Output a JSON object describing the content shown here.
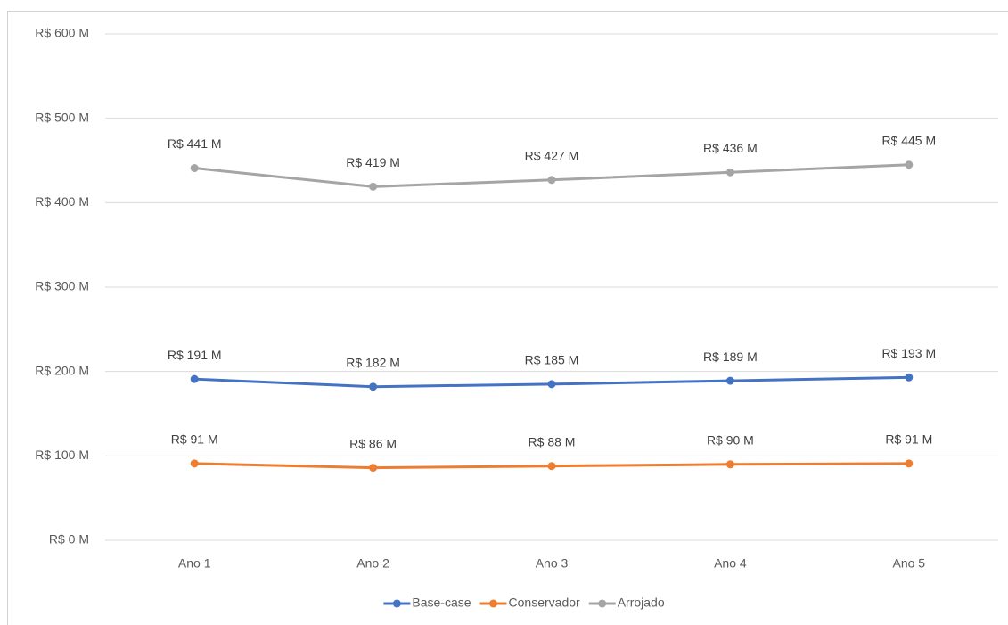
{
  "chart_data": {
    "type": "line",
    "categories": [
      "Ano 1",
      "Ano 2",
      "Ano 3",
      "Ano 4",
      "Ano 5"
    ],
    "series": [
      {
        "name": "Base-case",
        "color": "#4472c4",
        "values": [
          191,
          182,
          185,
          189,
          193
        ],
        "value_labels": [
          "R$ 191 M",
          "R$ 182 M",
          "R$ 185 M",
          "R$ 189 M",
          "R$ 193 M"
        ]
      },
      {
        "name": "Conservador",
        "color": "#ed7d31",
        "values": [
          91,
          86,
          88,
          90,
          91
        ],
        "value_labels": [
          "R$ 91 M",
          "R$ 86 M",
          "R$ 88 M",
          "R$ 90 M",
          "R$ 91 M"
        ]
      },
      {
        "name": "Arrojado",
        "color": "#a5a5a5",
        "values": [
          441,
          419,
          427,
          436,
          445
        ],
        "value_labels": [
          "R$ 441 M",
          "R$ 419 M",
          "R$ 427 M",
          "R$ 436 M",
          "R$ 445 M"
        ]
      }
    ],
    "ylim": [
      0,
      600
    ],
    "yticks": [
      {
        "value": 0,
        "label": "R$ 0 M"
      },
      {
        "value": 100,
        "label": "R$ 100 M"
      },
      {
        "value": 200,
        "label": "R$ 200 M"
      },
      {
        "value": 300,
        "label": "R$ 300 M"
      },
      {
        "value": 400,
        "label": "R$ 400 M"
      },
      {
        "value": 500,
        "label": "R$ 500 M"
      },
      {
        "value": 600,
        "label": "R$ 600 M"
      }
    ],
    "grid": true,
    "legend": "bottom"
  }
}
